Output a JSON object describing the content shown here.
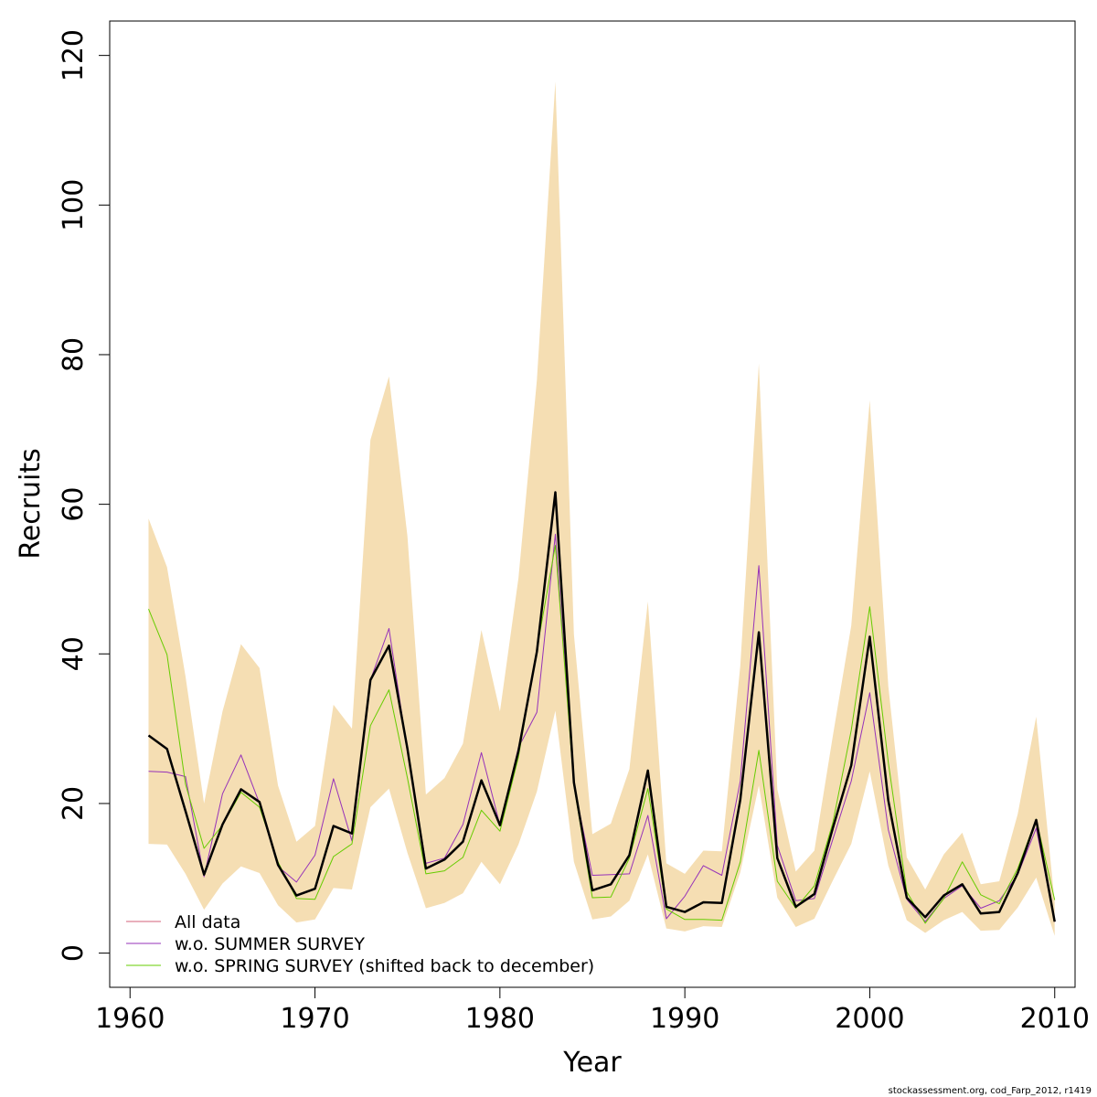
{
  "chart_data": {
    "type": "line",
    "xlabel": "Year",
    "ylabel": "Recruits",
    "xlim": [
      1958.9,
      2011.1
    ],
    "ylim": [
      -4.57,
      124.6
    ],
    "xticks": [
      1960,
      1970,
      1980,
      1990,
      2000,
      2010
    ],
    "yticks": [
      0,
      20,
      40,
      60,
      80,
      100,
      120
    ],
    "grid": false,
    "legend_position": "bottom-left",
    "x": [
      1961,
      1962,
      1963,
      1964,
      1965,
      1966,
      1967,
      1968,
      1969,
      1970,
      1971,
      1972,
      1973,
      1974,
      1975,
      1976,
      1977,
      1978,
      1979,
      1980,
      1981,
      1982,
      1983,
      1984,
      1985,
      1986,
      1987,
      1988,
      1989,
      1990,
      1991,
      1992,
      1993,
      1994,
      1995,
      1996,
      1997,
      1998,
      1999,
      2000,
      2001,
      2002,
      2003,
      2004,
      2005,
      2006,
      2007,
      2008,
      2009,
      2010
    ],
    "band": {
      "color": "#f5deb3",
      "upper": [
        58.1,
        51.6,
        37.0,
        20.0,
        32.3,
        41.3,
        38.1,
        22.4,
        14.9,
        17.0,
        33.2,
        30.0,
        68.6,
        77.1,
        55.7,
        21.2,
        23.4,
        28.0,
        43.2,
        32.3,
        50.1,
        76.6,
        116.5,
        42.6,
        15.9,
        17.3,
        24.6,
        47.0,
        12.0,
        10.6,
        13.7,
        13.6,
        38.4,
        78.8,
        21.9,
        10.9,
        13.7,
        29.0,
        43.8,
        73.9,
        35.7,
        12.8,
        8.5,
        13.2,
        16.1,
        9.2,
        9.6,
        18.6,
        31.6,
        6.8
      ],
      "lower": [
        14.6,
        14.5,
        10.6,
        5.8,
        9.3,
        11.6,
        10.7,
        6.4,
        4.1,
        4.5,
        8.7,
        8.5,
        19.5,
        22.0,
        13.4,
        6.0,
        6.7,
        8.0,
        12.2,
        9.2,
        14.5,
        21.6,
        32.4,
        12.2,
        4.5,
        4.9,
        7.0,
        13.2,
        3.3,
        2.9,
        3.6,
        3.5,
        10.8,
        22.4,
        7.4,
        3.5,
        4.6,
        9.7,
        14.6,
        24.3,
        11.7,
        4.4,
        2.7,
        4.4,
        5.5,
        3.0,
        3.1,
        6.1,
        10.1,
        2.3
      ]
    },
    "series": [
      {
        "name": "All data",
        "color": "#d3607a",
        "width": 1,
        "values": [
          29.1,
          27.3,
          19.0,
          10.5,
          17.2,
          21.9,
          20.2,
          11.8,
          7.7,
          8.6,
          17.0,
          16.0,
          36.5,
          41.1,
          27.3,
          11.3,
          12.5,
          14.9,
          23.1,
          17.1,
          27.0,
          40.3,
          61.6,
          22.8,
          8.4,
          9.2,
          13.1,
          24.4,
          6.2,
          5.5,
          6.8,
          6.7,
          20.5,
          42.9,
          12.7,
          6.2,
          7.9,
          16.7,
          25.1,
          42.3,
          20.4,
          7.4,
          4.8,
          7.7,
          9.2,
          5.3,
          5.5,
          10.7,
          17.8,
          4.2
        ]
      },
      {
        "name": "w.o. SUMMER SURVEY",
        "color": "#9632b9",
        "width": 1,
        "values": [
          24.3,
          24.2,
          23.6,
          10.2,
          21.3,
          26.5,
          20.0,
          11.6,
          9.5,
          13.1,
          23.3,
          15.0,
          36.5,
          43.4,
          27.0,
          12.0,
          12.7,
          17.2,
          26.8,
          17.1,
          27.5,
          32.2,
          56.0,
          22.5,
          10.4,
          10.5,
          10.6,
          18.4,
          4.6,
          7.6,
          11.7,
          10.4,
          23.0,
          51.8,
          14.4,
          7.0,
          7.3,
          15.2,
          23.0,
          34.8,
          16.5,
          7.2,
          4.2,
          7.3,
          9.0,
          6.0,
          7.0,
          10.5,
          16.7,
          4.2
        ]
      },
      {
        "name": "w.o. SPRING SURVEY (shifted back to december)",
        "color": "#66cc00",
        "width": 1,
        "values": [
          46.0,
          39.9,
          22.6,
          14.0,
          17.1,
          21.5,
          19.5,
          12.2,
          7.3,
          7.2,
          12.9,
          14.6,
          30.4,
          35.2,
          23.4,
          10.6,
          11.0,
          12.8,
          19.1,
          16.3,
          26.2,
          40.6,
          54.5,
          22.4,
          7.4,
          7.5,
          12.7,
          22.0,
          5.9,
          4.5,
          4.5,
          4.4,
          12.2,
          27.1,
          9.6,
          6.0,
          9.0,
          17.4,
          29.8,
          46.3,
          25.5,
          8.2,
          4.0,
          7.3,
          12.2,
          7.8,
          6.6,
          11.3,
          17.9,
          7.1
        ]
      }
    ],
    "main_line": {
      "color": "#000000",
      "width": 2.5,
      "follows": "All data"
    }
  },
  "legend": {
    "items": [
      {
        "label": "All data",
        "color": "#d3607a"
      },
      {
        "label": "w.o. SUMMER SURVEY",
        "color": "#9632b9"
      },
      {
        "label": "w.o. SPRING SURVEY (shifted back to december)",
        "color": "#66cc00"
      }
    ]
  },
  "footer": {
    "text": "stockassessment.org, cod_Farp_2012, r1419"
  }
}
